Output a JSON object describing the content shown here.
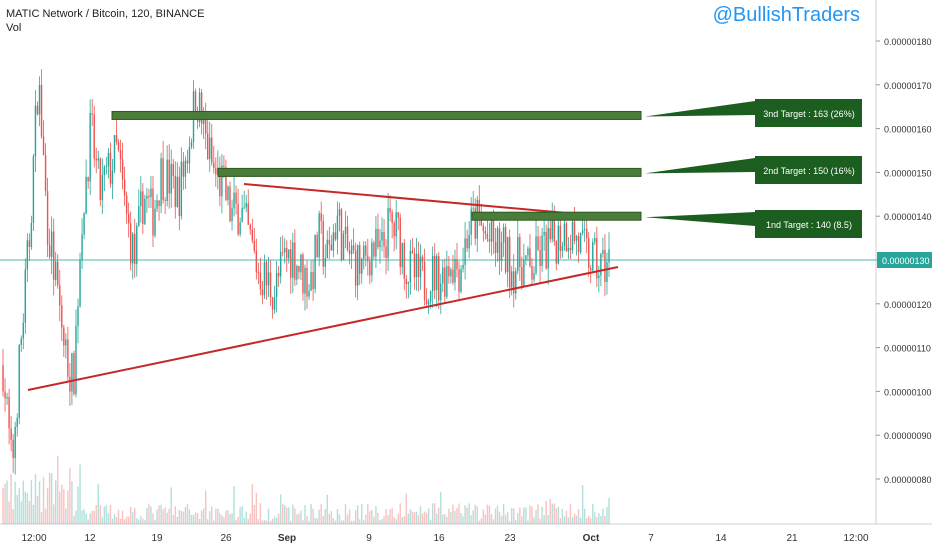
{
  "header": {
    "symbol_line": "MATIC Network / Bitcoin, 120, BINANCE",
    "volume_label": "Vol"
  },
  "watermark": "@BullishTraders",
  "colors": {
    "up": "#26a69a",
    "down": "#ef5350",
    "trendline": "#c62828",
    "target_band": "#4a7c3a",
    "target_callout": "#1b5e20",
    "price_line": "#26a69a",
    "axis_text": "#333333"
  },
  "chart_data": {
    "type": "candlestick",
    "x_ticks": [
      "12:00",
      "12",
      "19",
      "26",
      "Sep",
      "9",
      "16",
      "23",
      "Oct",
      "7",
      "14",
      "21",
      "12:00"
    ],
    "y_ticks": [
      "0.00000080",
      "0.00000090",
      "0.00000100",
      "0.00000110",
      "0.00000120",
      "0.00000130",
      "0.00000140",
      "0.00000150",
      "0.00000160",
      "0.00000170",
      "0.00000180"
    ],
    "y_range": [
      7e-07,
      1.9e-06
    ],
    "last_price": "0.00000130",
    "targets": [
      {
        "label": "3nd Target : 163 (26%)",
        "value": 1.63e-06
      },
      {
        "label": "2nd Target : 150 (16%)",
        "value": 1.5e-06
      },
      {
        "label": "1nd Target : 140 (8.5)",
        "value": 1.4e-06
      }
    ],
    "price_series": [
      [
        0,
        1.06e-06
      ],
      [
        1,
        8.2e-07
      ],
      [
        2,
        1.1e-06
      ],
      [
        3,
        1.35e-06
      ],
      [
        4,
        1.72e-06
      ],
      [
        5,
        1.4e-06
      ],
      [
        6,
        1.25e-06
      ],
      [
        7,
        1.1e-06
      ],
      [
        8,
        1.02e-06
      ],
      [
        9,
        1.4e-06
      ],
      [
        10,
        1.6e-06
      ],
      [
        11,
        1.45e-06
      ],
      [
        12,
        1.5e-06
      ],
      [
        13,
        1.55e-06
      ],
      [
        14,
        1.4e-06
      ],
      [
        15,
        1.3e-06
      ],
      [
        16,
        1.45e-06
      ],
      [
        17,
        1.4e-06
      ],
      [
        18,
        1.5e-06
      ],
      [
        19,
        1.48e-06
      ],
      [
        20,
        1.45e-06
      ],
      [
        21,
        1.55e-06
      ],
      [
        22,
        1.68e-06
      ],
      [
        23,
        1.58e-06
      ],
      [
        24,
        1.5e-06
      ],
      [
        25,
        1.47e-06
      ],
      [
        26,
        1.4e-06
      ],
      [
        27,
        1.42e-06
      ],
      [
        28,
        1.35e-06
      ],
      [
        29,
        1.28e-06
      ],
      [
        30,
        1.25e-06
      ],
      [
        31,
        1.23e-06
      ],
      [
        32,
        1.3e-06
      ],
      [
        33,
        1.32e-06
      ],
      [
        34,
        1.27e-06
      ],
      [
        35,
        1.25e-06
      ],
      [
        36,
        1.35e-06
      ],
      [
        37,
        1.3e-06
      ],
      [
        38,
        1.4e-06
      ],
      [
        39,
        1.32e-06
      ],
      [
        40,
        1.3e-06
      ],
      [
        41,
        1.28e-06
      ],
      [
        42,
        1.33e-06
      ],
      [
        43,
        1.31e-06
      ],
      [
        44,
        1.38e-06
      ],
      [
        45,
        1.36e-06
      ],
      [
        46,
        1.28e-06
      ],
      [
        47,
        1.26e-06
      ],
      [
        48,
        1.25e-06
      ],
      [
        49,
        1.27e-06
      ],
      [
        50,
        1.26e-06
      ],
      [
        51,
        1.3e-06
      ],
      [
        52,
        1.28e-06
      ],
      [
        53,
        1.37e-06
      ],
      [
        54,
        1.39e-06
      ],
      [
        55,
        1.35e-06
      ],
      [
        56,
        1.33e-06
      ],
      [
        57,
        1.32e-06
      ],
      [
        58,
        1.28e-06
      ],
      [
        59,
        1.3e-06
      ],
      [
        60,
        1.27e-06
      ],
      [
        61,
        1.31e-06
      ],
      [
        62,
        1.33e-06
      ],
      [
        63,
        1.35e-06
      ],
      [
        64,
        1.37e-06
      ],
      [
        65,
        1.36e-06
      ],
      [
        66,
        1.32e-06
      ],
      [
        67,
        1.3e-06
      ],
      [
        68,
        1.28e-06
      ],
      [
        69,
        1.3e-06
      ]
    ]
  }
}
